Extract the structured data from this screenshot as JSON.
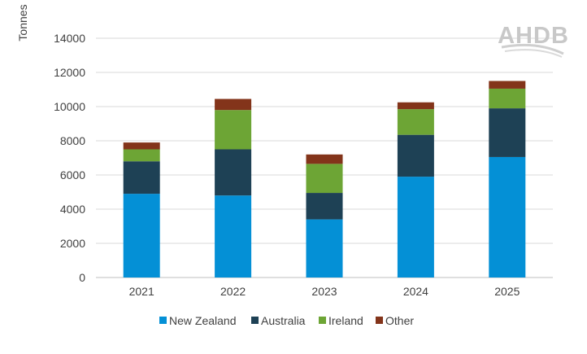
{
  "chart_data": {
    "type": "bar",
    "stacked": true,
    "categories": [
      "2021",
      "2022",
      "2023",
      "2024",
      "2025"
    ],
    "series": [
      {
        "name": "New Zealand",
        "color": "#0490d6",
        "values": [
          4900,
          4800,
          3400,
          5900,
          7050
        ]
      },
      {
        "name": "Australia",
        "color": "#1e4155",
        "values": [
          1900,
          2700,
          1550,
          2450,
          2850
        ]
      },
      {
        "name": "Ireland",
        "color": "#6da535",
        "values": [
          700,
          2300,
          1700,
          1500,
          1150
        ]
      },
      {
        "name": "Other",
        "color": "#83341a",
        "values": [
          400,
          650,
          550,
          400,
          450
        ]
      }
    ],
    "ylabel": "Tonnes",
    "ylim": [
      0,
      14000
    ],
    "yticks": [
      0,
      2000,
      4000,
      6000,
      8000,
      10000,
      12000,
      14000
    ],
    "grid": true,
    "legend_position": "bottom"
  },
  "logo": {
    "text": "AHDB"
  }
}
